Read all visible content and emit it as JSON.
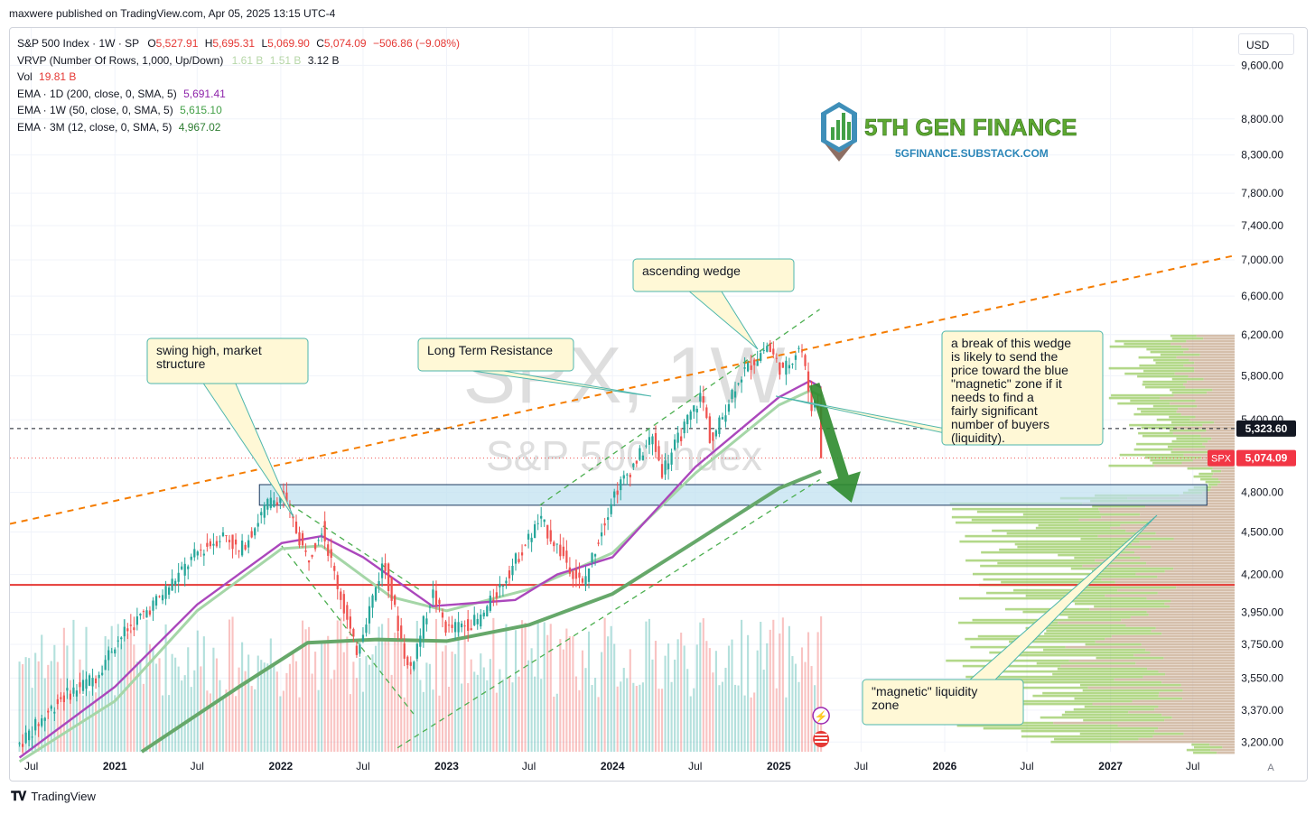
{
  "header": {
    "published": "maxwere published on TradingView.com, Apr 05, 2025 13:15 UTC-4"
  },
  "legend": {
    "title": "S&P 500 Index · 1W · SP",
    "o_label": "O",
    "o": "5,527.91",
    "h_label": "H",
    "h": "5,695.31",
    "l_label": "L",
    "l": "5,069.90",
    "c_label": "C",
    "c": "5,074.09",
    "change": "−506.86 (−9.08%)",
    "vrvp": "VRVP (Number Of Rows, 1,000, Up/Down)",
    "vrvp_v1": "1.61 B",
    "vrvp_v2": "1.51 B",
    "vrvp_v3": "3.12 B",
    "vol_label": "Vol",
    "vol": "19.81 B",
    "ema1": "EMA · 1D (200, close, 0, SMA, 5)",
    "ema1_v": "5,691.41",
    "ema2": "EMA · 1W (50, close, 0, SMA, 5)",
    "ema2_v": "5,615.10",
    "ema3": "EMA · 3M (12, close, 0, SMA, 5)",
    "ema3_v": "4,967.02"
  },
  "currency_button": "USD",
  "watermark": {
    "symbol": "SPX, 1W",
    "name": "S&P 500 Index"
  },
  "brand": {
    "name": "5TH GEN FINANCE",
    "url": "5GFINANCE.SUBSTACK.COM"
  },
  "annotations": {
    "swing_high": "swing high, market structure",
    "resistance": "Long Term Resistance",
    "wedge": "ascending wedge",
    "break_note": "a break of this wedge is likely to send the price toward the blue \"magnetic\" zone if it needs to find a fairly significant number of buyers (liquidity).",
    "liquidity": "\"magnetic\" liquidity zone"
  },
  "price_labels": {
    "dashed": "5,323.60",
    "spx_tag": "SPX",
    "last": "5,074.09",
    "auto": "A"
  },
  "footer": {
    "brand": "TradingView"
  },
  "colors": {
    "up": "#26a69a",
    "down": "#ef5350",
    "ema_purple": "#ab47bc",
    "ema_light": "#a5d6a7",
    "ema_dark": "#66a86a",
    "resistance": "#f57c00",
    "support": "#e53935",
    "zone": "#bde0f0"
  },
  "chart_data": {
    "type": "candlestick",
    "title": "S&P 500 Index · 1W · SP",
    "yscale": "log",
    "ylim": [
      3150,
      10200
    ],
    "y_ticks": [
      9600,
      8800,
      8300,
      7800,
      7400,
      7000,
      6600,
      6200,
      5800,
      5400,
      4800,
      4500,
      4200,
      3950,
      3750,
      3550,
      3370,
      3200
    ],
    "y_tick_labels": [
      "9,600.00",
      "8,800.00",
      "8,300.00",
      "7,800.00",
      "7,400.00",
      "7,000.00",
      "6,600.00",
      "6,200.00",
      "5,800.00",
      "5,400.00",
      "4,800.00",
      "4,500.00",
      "4,200.00",
      "3,950.00",
      "3,750.00",
      "3,550.00",
      "3,370.00",
      "3,200.00"
    ],
    "x_ticks": [
      "Jul",
      "2021",
      "Jul",
      "2022",
      "Jul",
      "2023",
      "Jul",
      "2024",
      "Jul",
      "2025",
      "Jul",
      "2026",
      "Jul",
      "2027",
      "Jul"
    ],
    "x_range": [
      "2020-05-15",
      "2027-10-01"
    ],
    "tick_dates": [
      "2020-07-01",
      "2021-01-01",
      "2021-07-01",
      "2022-01-01",
      "2022-07-01",
      "2023-01-01",
      "2023-07-01",
      "2024-01-01",
      "2024-07-01",
      "2025-01-01",
      "2025-07-01",
      "2026-01-01",
      "2026-07-01",
      "2027-01-01",
      "2027-07-01"
    ],
    "close_path": [
      [
        "2020-06-05",
        3190
      ],
      [
        "2020-09-01",
        3430
      ],
      [
        "2020-11-20",
        3560
      ],
      [
        "2021-01-01",
        3760
      ],
      [
        "2021-04-01",
        4020
      ],
      [
        "2021-07-01",
        4350
      ],
      [
        "2021-09-01",
        4490
      ],
      [
        "2021-10-01",
        4350
      ],
      [
        "2021-12-01",
        4700
      ],
      [
        "2022-01-03",
        4790
      ],
      [
        "2022-03-01",
        4300
      ],
      [
        "2022-04-01",
        4540
      ],
      [
        "2022-06-15",
        3700
      ],
      [
        "2022-08-15",
        4290
      ],
      [
        "2022-10-10",
        3580
      ],
      [
        "2022-12-01",
        4080
      ],
      [
        "2023-01-01",
        3840
      ],
      [
        "2023-03-15",
        3900
      ],
      [
        "2023-07-25",
        4590
      ],
      [
        "2023-10-27",
        4120
      ],
      [
        "2024-01-01",
        4770
      ],
      [
        "2024-03-28",
        5250
      ],
      [
        "2024-04-19",
        4970
      ],
      [
        "2024-07-15",
        5630
      ],
      [
        "2024-08-05",
        5190
      ],
      [
        "2024-10-01",
        5760
      ],
      [
        "2024-12-06",
        6090
      ],
      [
        "2025-01-10",
        5830
      ],
      [
        "2025-02-18",
        6110
      ],
      [
        "2025-03-13",
        5520
      ],
      [
        "2025-03-28",
        5580
      ],
      [
        "2025-04-04",
        5074
      ]
    ],
    "last_ohlc": {
      "open": 5527.91,
      "high": 5695.31,
      "low": 5069.9,
      "close": 5074.09,
      "change": -506.86,
      "change_pct": -9.08
    },
    "ema_200d": [
      [
        "2020-06-05",
        3120
      ],
      [
        "2021-01-01",
        3500
      ],
      [
        "2021-07-01",
        4000
      ],
      [
        "2022-01-03",
        4420
      ],
      [
        "2022-04-01",
        4470
      ],
      [
        "2022-07-01",
        4320
      ],
      [
        "2022-12-01",
        3990
      ],
      [
        "2023-06-01",
        4030
      ],
      [
        "2023-09-01",
        4200
      ],
      [
        "2024-01-01",
        4320
      ],
      [
        "2024-07-01",
        5000
      ],
      [
        "2025-01-01",
        5600
      ],
      [
        "2025-03-10",
        5750
      ],
      [
        "2025-04-04",
        5691
      ]
    ],
    "ema_50w": [
      [
        "2020-06-05",
        3100
      ],
      [
        "2021-01-01",
        3420
      ],
      [
        "2021-07-01",
        3960
      ],
      [
        "2022-01-03",
        4380
      ],
      [
        "2022-04-01",
        4400
      ],
      [
        "2022-09-01",
        4050
      ],
      [
        "2023-01-01",
        3960
      ],
      [
        "2023-07-01",
        4100
      ],
      [
        "2024-01-01",
        4350
      ],
      [
        "2024-07-01",
        4950
      ],
      [
        "2025-01-01",
        5530
      ],
      [
        "2025-03-10",
        5660
      ],
      [
        "2025-04-04",
        5615
      ]
    ],
    "ema_3m": [
      [
        "2021-03-01",
        3150
      ],
      [
        "2021-10-01",
        3500
      ],
      [
        "2022-03-01",
        3760
      ],
      [
        "2022-08-01",
        3780
      ],
      [
        "2023-01-01",
        3770
      ],
      [
        "2023-07-01",
        3870
      ],
      [
        "2024-01-01",
        4070
      ],
      [
        "2024-07-01",
        4430
      ],
      [
        "2025-01-01",
        4830
      ],
      [
        "2025-04-04",
        4967
      ]
    ],
    "volume_max_label": "19.81 B",
    "lines": {
      "long_term_resistance": [
        [
          "2020-05-15",
          4560
        ],
        [
          "2027-10-01",
          7050
        ]
      ],
      "support_red": 4130,
      "dashed_level": 5323.6,
      "last_price_dotted": 5074.09,
      "wedge_upper": [
        [
          "2023-07-25",
          4700
        ],
        [
          "2025-04-01",
          6460
        ]
      ],
      "wedge_lower": [
        [
          "2022-09-15",
          3170
        ],
        [
          "2025-04-01",
          4900
        ]
      ],
      "channel_2022_upper": [
        [
          "2022-01-03",
          4750
        ],
        [
          "2022-11-01",
          4100
        ]
      ],
      "channel_2022_lower": [
        [
          "2022-01-03",
          4400
        ],
        [
          "2022-10-20",
          3350
        ]
      ]
    },
    "liquidity_zone": {
      "from": "2021-11-15",
      "to": "2027-08-01",
      "low": 4700,
      "high": 4860
    },
    "projection_arrow": {
      "from": [
        "2025-03-20",
        5720
      ],
      "to": [
        "2025-06-10",
        4720
      ]
    },
    "volume_profile": {
      "high_volume_zone": [
        3200,
        4800
      ],
      "upper_zone": [
        5000,
        6200
      ]
    }
  }
}
